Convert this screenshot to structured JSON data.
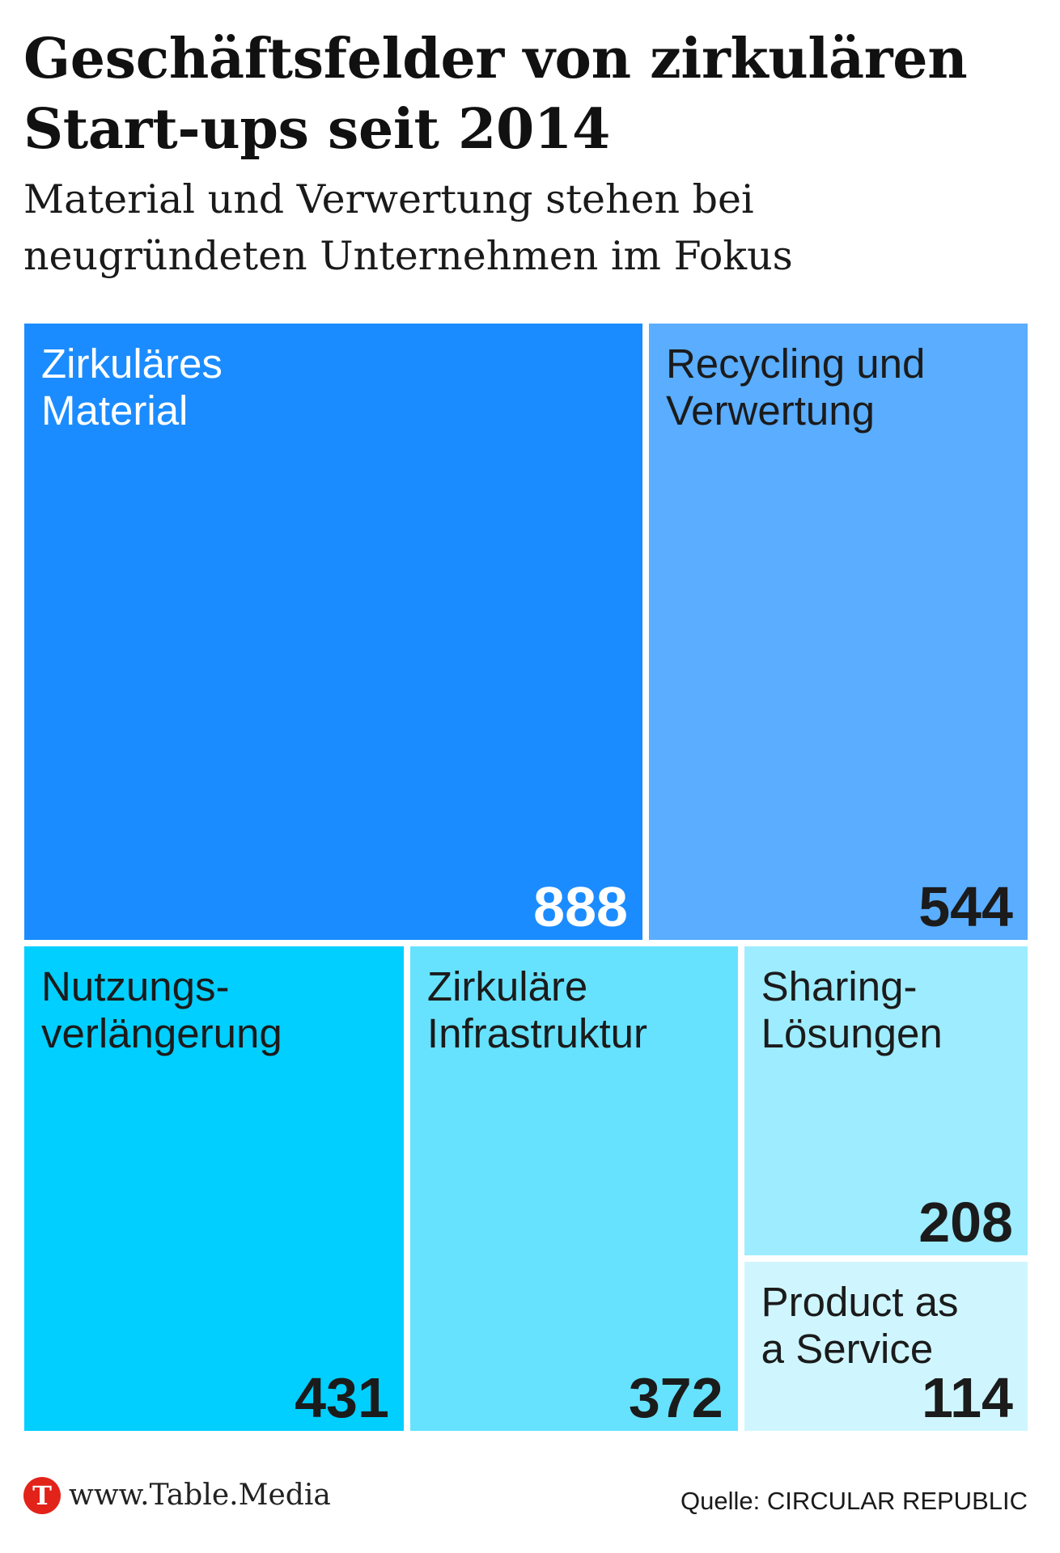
{
  "title_lines": [
    "Geschäftsfelder von zirkulären",
    "Start-ups seit 2014"
  ],
  "subtitle_lines": [
    "Material und Verwertung stehen bei",
    "neugründeten Unternehmen im Fokus"
  ],
  "chart_data": {
    "type": "treemap",
    "title": "Geschäftsfelder von zirkulären Start-ups seit 2014",
    "subtitle": "Material und Verwertung stehen bei neugründeten Unternehmen im Fokus",
    "items": [
      {
        "label_lines": [
          "Zirkuläres",
          "Material"
        ],
        "value": 888,
        "color": "#1b8cff",
        "text_color": "#ffffff"
      },
      {
        "label_lines": [
          "Recycling und",
          "Verwertung"
        ],
        "value": 544,
        "color": "#5aadff",
        "text_color": "#1b1b1b"
      },
      {
        "label_lines": [
          "Nutzungs-",
          "verlängerung"
        ],
        "value": 431,
        "color": "#00cfff",
        "text_color": "#1b1b1b"
      },
      {
        "label_lines": [
          "Zirkuläre",
          "Infrastruktur"
        ],
        "value": 372,
        "color": "#66e2ff",
        "text_color": "#1b1b1b"
      },
      {
        "label_lines": [
          "Sharing-",
          "Lösungen"
        ],
        "value": 208,
        "color": "#9eecff",
        "text_color": "#1b1b1b"
      },
      {
        "label_lines": [
          "Product as",
          "a Service"
        ],
        "value": 114,
        "color": "#cff6ff",
        "text_color": "#1b1b1b"
      }
    ]
  },
  "footer": {
    "logo_letter": "T",
    "logo_color": "#e2231a",
    "site": "www.Table.Media",
    "source": "Quelle: CIRCULAR REPUBLIC"
  }
}
